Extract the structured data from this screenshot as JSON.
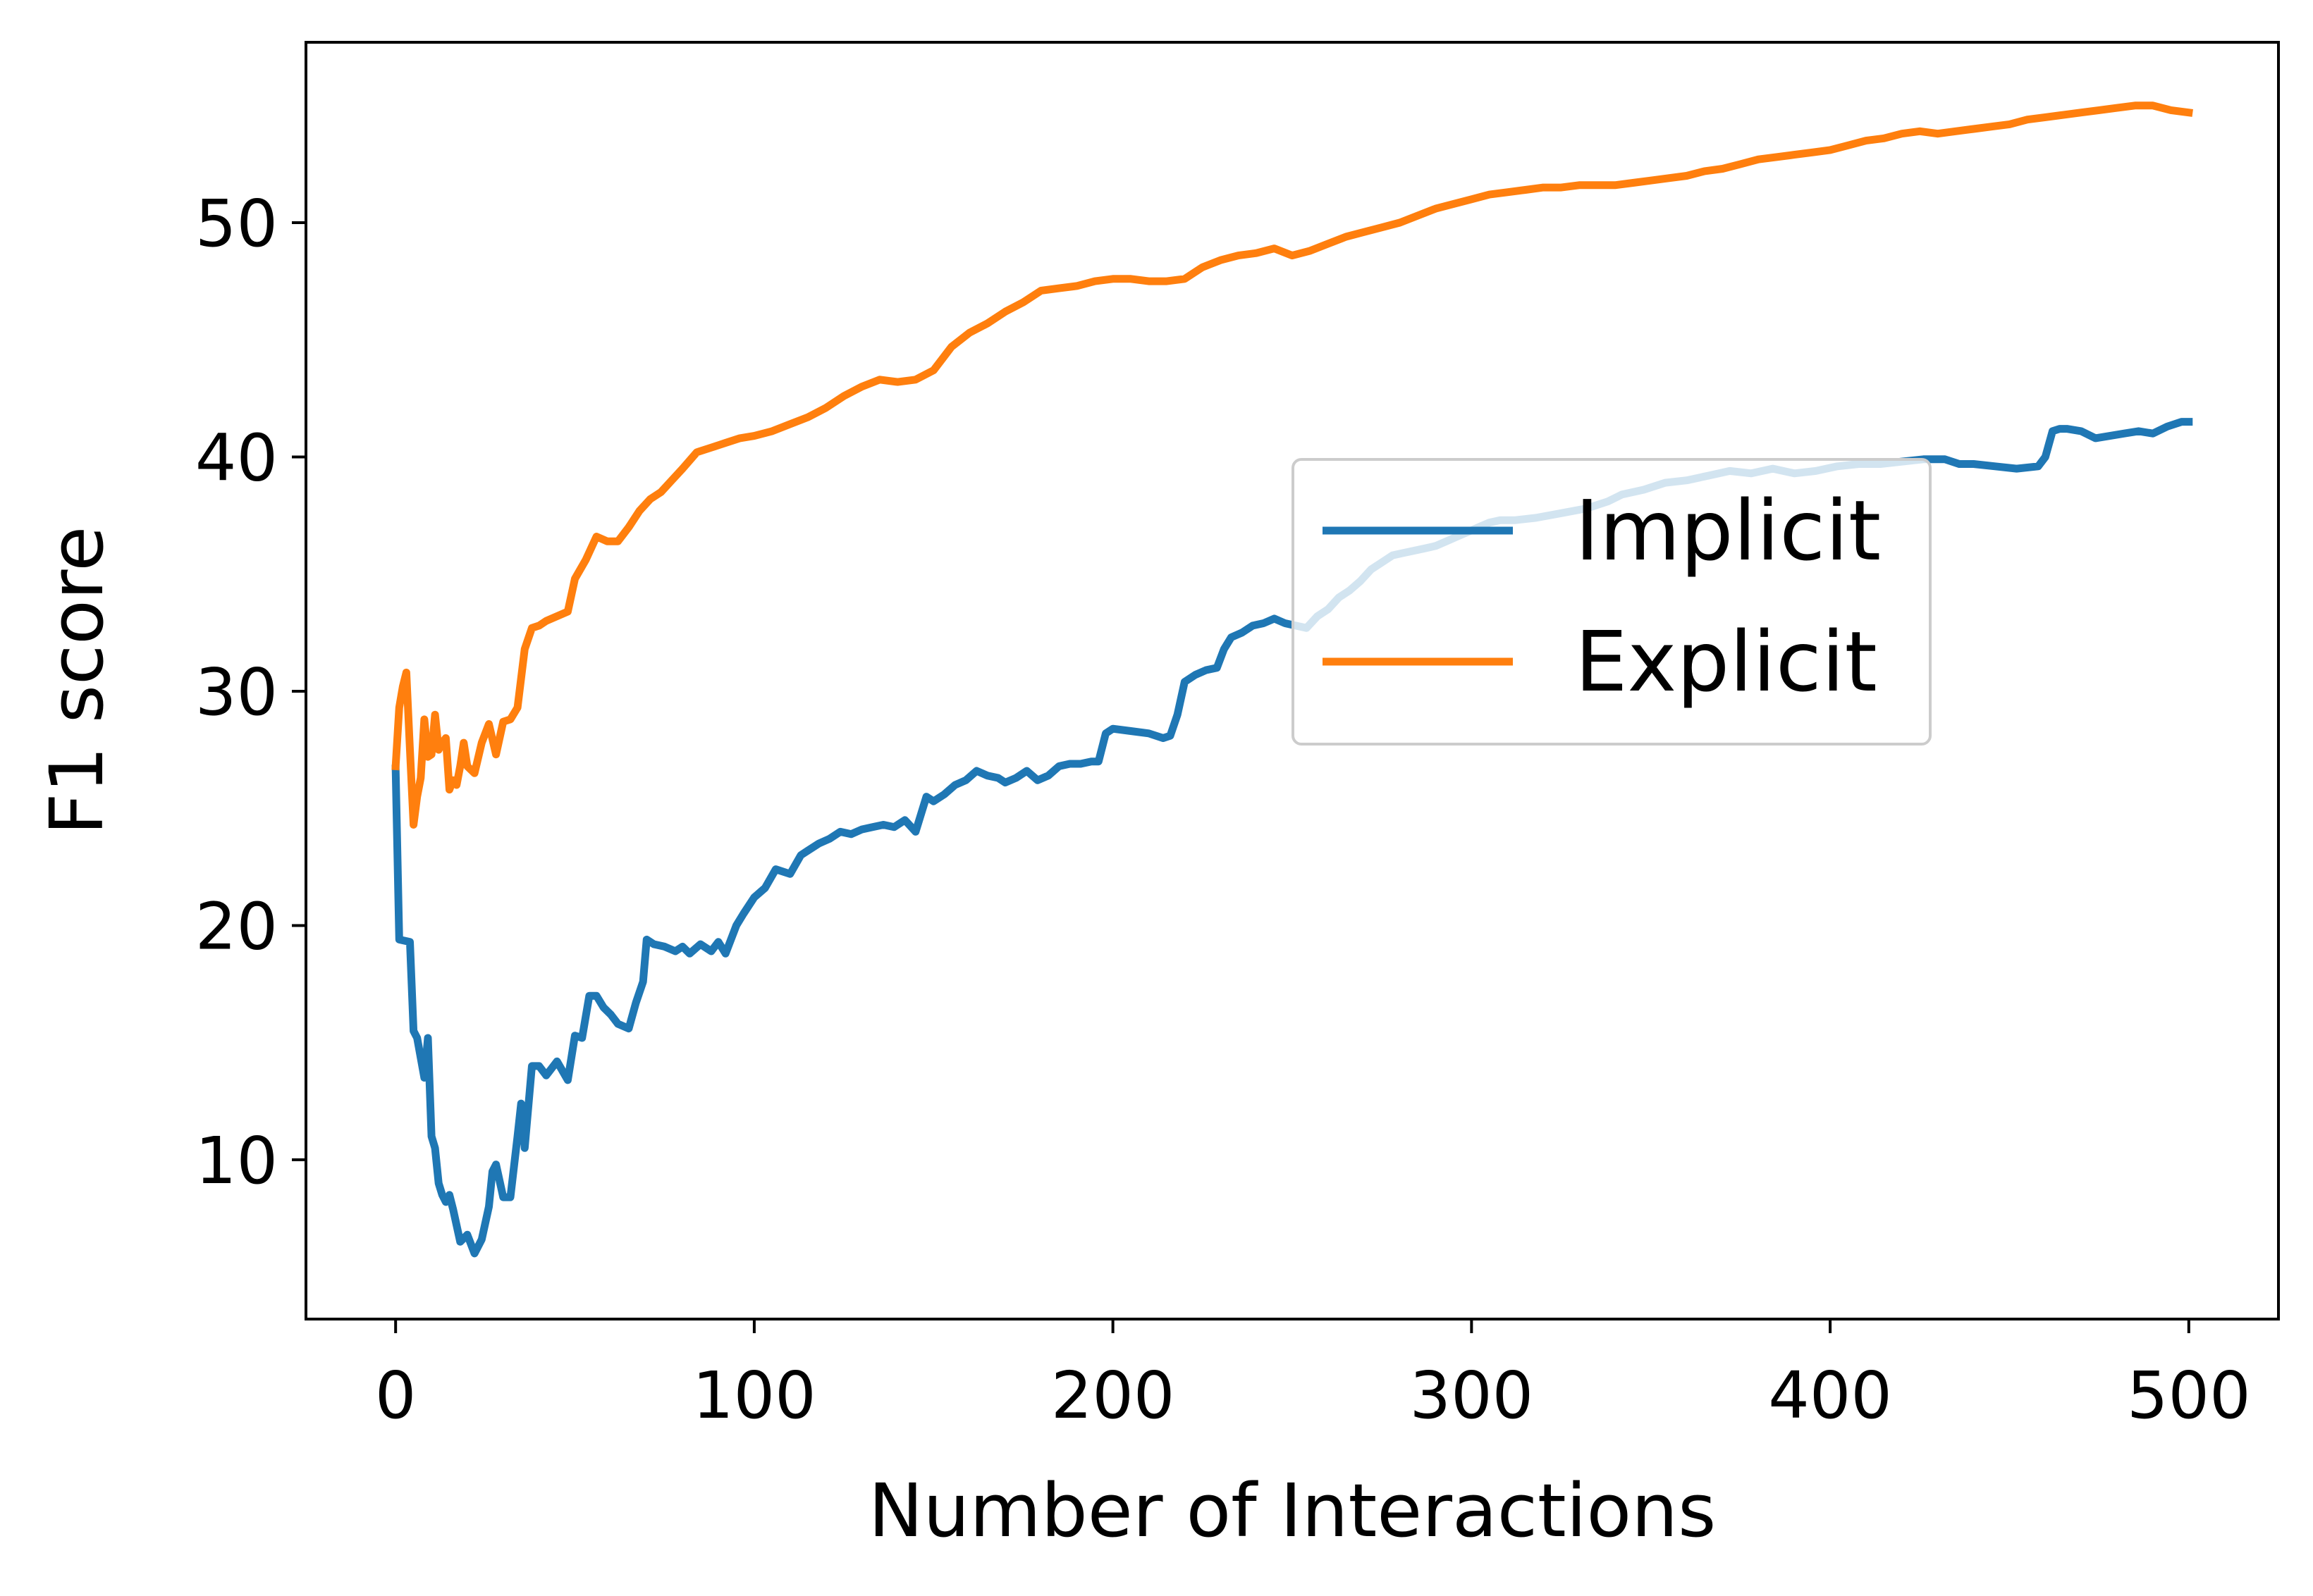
{
  "chart_data": {
    "type": "line",
    "title": "",
    "xlabel": "Number of Interactions",
    "ylabel": "F1 score",
    "xlim": [
      -25,
      525
    ],
    "ylim": [
      3.2,
      57.7
    ],
    "xticks": [
      0,
      100,
      200,
      300,
      400,
      500
    ],
    "yticks": [
      10,
      20,
      30,
      40,
      50
    ],
    "grid": false,
    "legend_position": "center-right",
    "series": [
      {
        "name": "Implicit",
        "color": "#1f77b4",
        "x": [
          0,
          1,
          4,
          5,
          6,
          8,
          9,
          10,
          11,
          12,
          13,
          14,
          15,
          16,
          18,
          20,
          22,
          24,
          26,
          27,
          28,
          30,
          32,
          34,
          35,
          36,
          38,
          40,
          42,
          45,
          48,
          50,
          52,
          54,
          56,
          58,
          60,
          62,
          65,
          67,
          69,
          70,
          72,
          75,
          78,
          80,
          82,
          85,
          88,
          90,
          92,
          95,
          97,
          100,
          103,
          106,
          110,
          113,
          115,
          118,
          121,
          124,
          127,
          130,
          133,
          136,
          139,
          142,
          145,
          148,
          150,
          153,
          156,
          159,
          162,
          165,
          168,
          170,
          173,
          176,
          179,
          182,
          185,
          188,
          191,
          194,
          196,
          198,
          200,
          205,
          210,
          214,
          216,
          218,
          220,
          223,
          226,
          229,
          231,
          233,
          236,
          239,
          242,
          245,
          248,
          251,
          254,
          257,
          260,
          263,
          266,
          269,
          272,
          275,
          278,
          281,
          284,
          287,
          290,
          293,
          296,
          299,
          302,
          305,
          308,
          312,
          318,
          325,
          332,
          338,
          342,
          348,
          354,
          360,
          366,
          372,
          378,
          384,
          390,
          396,
          402,
          408,
          414,
          420,
          426,
          432,
          436,
          440,
          446,
          452,
          458,
          460,
          462,
          464,
          466,
          470,
          474,
          478,
          482,
          486,
          490,
          494,
          498,
          500
        ],
        "values": [
          26.7,
          19.4,
          19.3,
          15.5,
          15.2,
          13.5,
          15.2,
          11.0,
          10.5,
          9.0,
          8.5,
          8.2,
          8.5,
          7.9,
          6.5,
          6.8,
          6.0,
          6.6,
          8.0,
          9.5,
          9.8,
          8.4,
          8.4,
          11.0,
          12.4,
          10.5,
          14.0,
          14.0,
          13.6,
          14.2,
          13.4,
          15.3,
          15.2,
          17.0,
          17.0,
          16.5,
          16.2,
          15.8,
          15.6,
          16.7,
          17.6,
          19.4,
          19.2,
          19.1,
          18.9,
          19.1,
          18.8,
          19.2,
          18.9,
          19.3,
          18.8,
          20.0,
          20.5,
          21.2,
          21.6,
          22.4,
          22.2,
          23.0,
          23.2,
          23.5,
          23.7,
          24.0,
          23.9,
          24.1,
          24.2,
          24.3,
          24.2,
          24.5,
          24.0,
          25.5,
          25.3,
          25.6,
          26.0,
          26.2,
          26.6,
          26.4,
          26.3,
          26.1,
          26.3,
          26.6,
          26.2,
          26.4,
          26.8,
          26.9,
          26.9,
          27.0,
          27.0,
          28.2,
          28.4,
          28.3,
          28.2,
          28.0,
          28.1,
          29.0,
          30.4,
          30.7,
          30.9,
          31.0,
          31.8,
          32.3,
          32.5,
          32.8,
          32.9,
          33.1,
          32.9,
          32.8,
          32.7,
          33.2,
          33.5,
          34.0,
          34.3,
          34.7,
          35.2,
          35.5,
          35.8,
          35.9,
          36.0,
          36.1,
          36.2,
          36.4,
          36.6,
          36.8,
          37.0,
          37.2,
          37.3,
          37.3,
          37.4,
          37.6,
          37.8,
          38.1,
          38.4,
          38.6,
          38.9,
          39.0,
          39.2,
          39.4,
          39.3,
          39.5,
          39.3,
          39.4,
          39.6,
          39.7,
          39.7,
          39.8,
          39.9,
          39.9,
          39.7,
          39.7,
          39.6,
          39.5,
          39.6,
          40.0,
          41.1,
          41.2,
          41.2,
          41.1,
          40.8,
          40.9,
          41.0,
          41.1,
          41.0,
          41.3,
          41.5,
          41.5
        ]
      },
      {
        "name": "Explicit",
        "color": "#ff7f0e",
        "x": [
          0,
          1,
          2,
          3,
          4,
          5,
          6,
          7,
          8,
          9,
          10,
          11,
          12,
          13,
          14,
          15,
          16,
          17,
          18,
          19,
          20,
          22,
          24,
          26,
          28,
          30,
          32,
          34,
          36,
          38,
          40,
          42,
          45,
          48,
          50,
          53,
          56,
          59,
          62,
          65,
          68,
          71,
          74,
          77,
          80,
          84,
          88,
          92,
          96,
          100,
          105,
          110,
          115,
          120,
          125,
          130,
          135,
          140,
          145,
          150,
          155,
          160,
          165,
          170,
          175,
          180,
          185,
          190,
          195,
          200,
          205,
          210,
          215,
          220,
          225,
          230,
          235,
          240,
          245,
          250,
          255,
          260,
          265,
          270,
          275,
          280,
          285,
          290,
          295,
          300,
          305,
          310,
          315,
          320,
          325,
          330,
          335,
          340,
          345,
          350,
          355,
          360,
          365,
          370,
          375,
          380,
          385,
          390,
          395,
          400,
          405,
          410,
          415,
          420,
          425,
          430,
          435,
          440,
          445,
          450,
          455,
          460,
          465,
          470,
          475,
          480,
          485,
          490,
          495,
          500
        ],
        "values": [
          26.8,
          29.3,
          30.2,
          30.8,
          27.5,
          24.3,
          25.5,
          26.3,
          28.8,
          27.2,
          27.3,
          29.0,
          27.5,
          27.8,
          28.0,
          25.8,
          26.2,
          26.0,
          26.8,
          27.8,
          26.8,
          26.5,
          27.8,
          28.6,
          27.3,
          28.7,
          28.8,
          29.3,
          31.8,
          32.7,
          32.8,
          33.0,
          33.2,
          33.4,
          34.8,
          35.6,
          36.6,
          36.4,
          36.4,
          37.0,
          37.7,
          38.2,
          38.5,
          39.0,
          39.5,
          40.2,
          40.4,
          40.6,
          40.8,
          40.9,
          41.1,
          41.4,
          41.7,
          42.1,
          42.6,
          43.0,
          43.3,
          43.2,
          43.3,
          43.7,
          44.7,
          45.3,
          45.7,
          46.2,
          46.6,
          47.1,
          47.2,
          47.3,
          47.5,
          47.6,
          47.6,
          47.5,
          47.5,
          47.6,
          48.1,
          48.4,
          48.6,
          48.7,
          48.9,
          48.6,
          48.8,
          49.1,
          49.4,
          49.6,
          49.8,
          50.0,
          50.3,
          50.6,
          50.8,
          51.0,
          51.2,
          51.3,
          51.4,
          51.5,
          51.5,
          51.6,
          51.6,
          51.6,
          51.7,
          51.8,
          51.9,
          52.0,
          52.2,
          52.3,
          52.5,
          52.7,
          52.8,
          52.9,
          53.0,
          53.1,
          53.3,
          53.5,
          53.6,
          53.8,
          53.9,
          53.8,
          53.9,
          54.0,
          54.1,
          54.2,
          54.4,
          54.5,
          54.6,
          54.7,
          54.8,
          54.9,
          55.0,
          55.0,
          54.8,
          54.7
        ]
      }
    ]
  }
}
